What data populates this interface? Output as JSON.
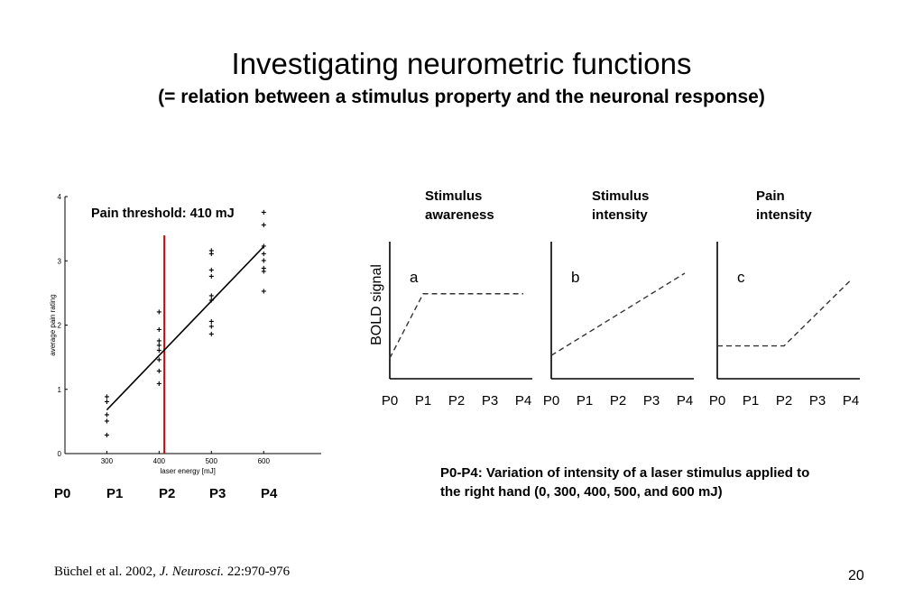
{
  "slide": {
    "title": "Investigating neurometric functions",
    "subtitle": "(= relation between a stimulus property and the neuronal response)",
    "page_number": "20",
    "citation": {
      "authors": "Büchel et al. 2002, ",
      "journal": "J. Neurosci.",
      "ref": " 22:970-976"
    },
    "description": "P0-P4: Variation of intensity of a laser stimulus applied to the right hand (0, 300, 400, 500, and 600 mJ)",
    "p_labels": [
      "P0",
      "P1",
      "P2",
      "P3",
      "P4"
    ],
    "column_headers": [
      {
        "line1": "Stimulus",
        "line2": "awareness"
      },
      {
        "line1": "Stimulus",
        "line2": "intensity"
      },
      {
        "line1": "Pain",
        "line2": "intensity"
      }
    ]
  },
  "chart_data": [
    {
      "type": "scatter",
      "xlabel": "laser energy [mJ]",
      "ylabel": "average pain rating",
      "xlim": [
        220,
        710
      ],
      "ylim": [
        0,
        4
      ],
      "xticks": [
        300,
        400,
        500,
        600
      ],
      "yticks": [
        0,
        1,
        2,
        3,
        4
      ],
      "annotation": "Pain threshold: 410 mJ",
      "threshold_x": 410,
      "threshold_color": "#e00000",
      "fit_line": {
        "x": [
          300,
          600
        ],
        "y": [
          0.68,
          3.22
        ]
      },
      "points": [
        {
          "x": 300,
          "y": [
            0.88,
            0.8,
            0.6,
            0.5,
            0.28
          ]
        },
        {
          "x": 400,
          "y": [
            2.2,
            1.92,
            1.75,
            1.68,
            1.6,
            1.45,
            1.28,
            1.08
          ]
        },
        {
          "x": 500,
          "y": [
            3.15,
            3.1,
            2.85,
            2.75,
            2.45,
            2.38,
            2.05,
            1.97,
            1.85
          ]
        },
        {
          "x": 600,
          "y": [
            3.75,
            3.55,
            3.22,
            3.1,
            3.0,
            2.88,
            2.83,
            2.52
          ]
        }
      ]
    },
    {
      "type": "line",
      "panel": "a",
      "ylabel": "BOLD signal",
      "categories": [
        "P0",
        "P1",
        "P2",
        "P3",
        "P4"
      ],
      "series": [
        {
          "values": [
            0.15,
            0.62,
            0.62,
            0.62,
            0.62
          ]
        }
      ]
    },
    {
      "type": "line",
      "panel": "b",
      "categories": [
        "P0",
        "P1",
        "P2",
        "P3",
        "P4"
      ],
      "series": [
        {
          "values": [
            0.17,
            0.32,
            0.47,
            0.62,
            0.77
          ]
        }
      ]
    },
    {
      "type": "line",
      "panel": "c",
      "categories": [
        "P0",
        "P1",
        "P2",
        "P3",
        "P4"
      ],
      "series": [
        {
          "values": [
            0.24,
            0.24,
            0.24,
            0.48,
            0.72
          ]
        }
      ]
    }
  ]
}
